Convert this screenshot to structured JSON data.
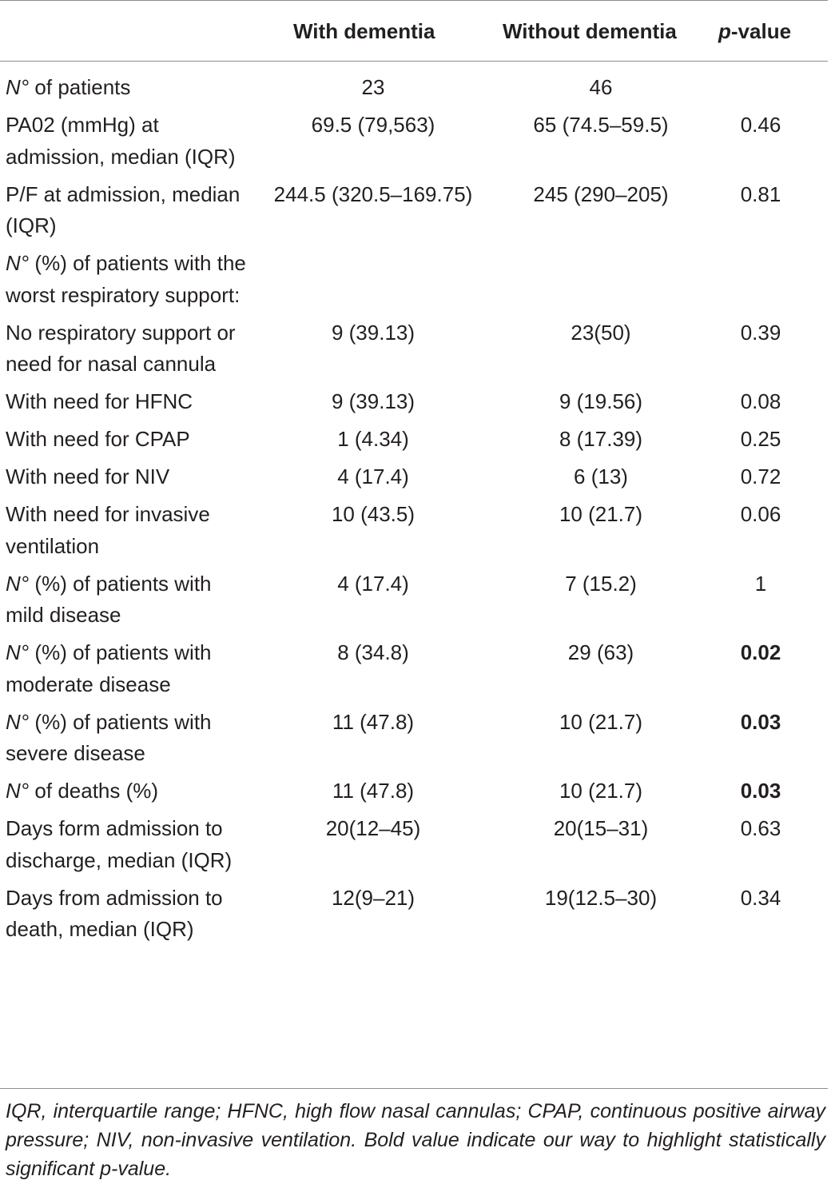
{
  "header": {
    "col_dementia": "With dementia",
    "col_no_dementia": "Without dementia",
    "col_p_italic": "p",
    "col_p_rest": "-value"
  },
  "rows": [
    {
      "label_italic": "N°",
      "label_rest": " of patients",
      "dem": "23",
      "nodem": "46",
      "p": "",
      "bold": false,
      "lines": 1
    },
    {
      "label_italic": "",
      "label_rest": "PA02 (mmHg) at admission, median (IQR)",
      "dem": "69.5 (79,563)",
      "nodem": "65 (74.5–59.5)",
      "p": "0.46",
      "bold": false,
      "lines": 3
    },
    {
      "label_italic": "",
      "label_rest": "P/F at admission, median (IQR)",
      "dem": "244.5 (320.5–169.75)",
      "nodem": "245 (290–205)",
      "p": "0.81",
      "bold": false,
      "lines": 2
    },
    {
      "label_italic": "N°",
      "label_rest": " (%) of patients with the worst respiratory support:",
      "dem": "",
      "nodem": "",
      "p": "",
      "bold": false,
      "lines": 3
    },
    {
      "label_italic": "",
      "label_rest": "No respiratory support or need for nasal cannula",
      "dem": "9 (39.13)",
      "nodem": "23(50)",
      "p": "0.39",
      "bold": false,
      "lines": 3
    },
    {
      "label_italic": "",
      "label_rest": "With need for HFNC",
      "dem": "9 (39.13)",
      "nodem": "9 (19.56)",
      "p": "0.08",
      "bold": false,
      "lines": 1
    },
    {
      "label_italic": "",
      "label_rest": "With need for CPAP",
      "dem": "1 (4.34)",
      "nodem": "8 (17.39)",
      "p": "0.25",
      "bold": false,
      "lines": 1
    },
    {
      "label_italic": "",
      "label_rest": "With need for NIV",
      "dem": "4 (17.4)",
      "nodem": "6 (13)",
      "p": "0.72",
      "bold": false,
      "lines": 1
    },
    {
      "label_italic": "",
      "label_rest": "With need for invasive ventilation",
      "dem": "10 (43.5)",
      "nodem": "10 (21.7)",
      "p": "0.06",
      "bold": false,
      "lines": 2
    },
    {
      "label_italic": "N°",
      "label_rest": " (%) of patients with mild disease",
      "dem": "4 (17.4)",
      "nodem": "7 (15.2)",
      "p": "1",
      "bold": false,
      "lines": 2
    },
    {
      "label_italic": "N°",
      "label_rest": " (%) of patients with moderate disease",
      "dem": "8 (34.8)",
      "nodem": "29 (63)",
      "p": "0.02",
      "bold": true,
      "lines": 2
    },
    {
      "label_italic": "N°",
      "label_rest": " (%) of patients with severe disease",
      "dem": "11 (47.8)",
      "nodem": "10 (21.7)",
      "p": "0.03",
      "bold": true,
      "lines": 2
    },
    {
      "label_italic": "N°",
      "label_rest": " of deaths (%)",
      "dem": "11 (47.8)",
      "nodem": "10 (21.7)",
      "p": "0.03",
      "bold": true,
      "lines": 1
    },
    {
      "label_italic": "",
      "label_rest": "Days form admission to discharge, median (IQR)",
      "dem": "20(12–45)",
      "nodem": "20(15–31)",
      "p": "0.63",
      "bold": false,
      "lines": 3
    },
    {
      "label_italic": "",
      "label_rest": "Days from admission to death, median (IQR)",
      "dem": "12(9–21)",
      "nodem": "19(12.5–30)",
      "p": "0.34",
      "bold": false,
      "lines": 2
    }
  ],
  "footnote": "IQR, interquartile range; HFNC, high flow nasal cannulas; CPAP, continuous positive airway pressure; NIV, non-invasive ventilation. Bold value indicate our way to highlight statistically significant p-value."
}
